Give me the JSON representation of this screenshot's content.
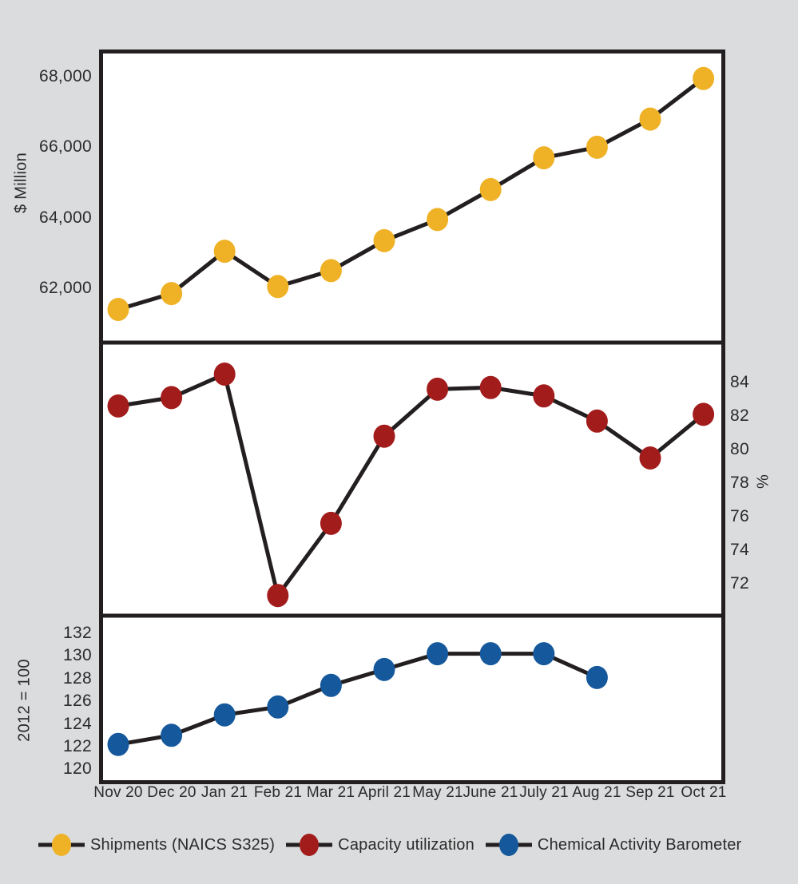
{
  "colors": {
    "background": "#DADCDD",
    "panel_background": "#FFFFFF",
    "line_stroke": "#231F20",
    "text": "#2B2B2B",
    "shipments": "#EFB226",
    "capacity": "#A31C1C",
    "barometer": "#15589B"
  },
  "chart_data": {
    "type": "line",
    "categories": [
      "Nov 20",
      "Dec 20",
      "Jan 21",
      "Feb 21",
      "Mar 21",
      "April 21",
      "May 21",
      "June 21",
      "July 21",
      "Aug 21",
      "Sep 21",
      "Oct 21"
    ],
    "panels": [
      {
        "name": "Shipments (NAICS S325)",
        "ylabel": "$ Million",
        "axis_side": "left",
        "color": "#EFB226",
        "ylim": [
          60450,
          68650
        ],
        "values": [
          61400,
          61850,
          63050,
          62050,
          62500,
          63350,
          63950,
          64800,
          65700,
          66000,
          66800,
          67950
        ],
        "yticks": [
          {
            "value": 68000,
            "label": "68,000"
          },
          {
            "value": 66000,
            "label": "66,000"
          },
          {
            "value": 64000,
            "label": "64,000"
          },
          {
            "value": 62000,
            "label": "62,000"
          }
        ]
      },
      {
        "name": "Capacity utilization",
        "ylabel": "%",
        "axis_side": "right",
        "color": "#A31C1C",
        "ylim": [
          70.1,
          86.4
        ],
        "values": [
          82.6,
          83.1,
          84.5,
          71.3,
          75.6,
          80.8,
          83.6,
          83.7,
          83.2,
          81.7,
          79.5,
          82.1
        ],
        "yticks": [
          {
            "value": 84,
            "label": "84"
          },
          {
            "value": 82,
            "label": "82"
          },
          {
            "value": 80,
            "label": "80"
          },
          {
            "value": 78,
            "label": "78"
          },
          {
            "value": 76,
            "label": "76"
          },
          {
            "value": 74,
            "label": "74"
          },
          {
            "value": 72,
            "label": "72"
          }
        ]
      },
      {
        "name": "Chemical Activity Barometer",
        "ylabel": "2012 = 100",
        "axis_side": "left",
        "color": "#15589B",
        "ylim": [
          119.0,
          133.5
        ],
        "values": [
          122.2,
          123.0,
          124.8,
          125.5,
          127.4,
          128.8,
          130.2,
          130.2,
          130.2,
          128.1,
          null,
          null
        ],
        "yticks": [
          {
            "value": 132,
            "label": "132"
          },
          {
            "value": 130,
            "label": "130"
          },
          {
            "value": 128,
            "label": "128"
          },
          {
            "value": 126,
            "label": "126"
          },
          {
            "value": 124,
            "label": "124"
          },
          {
            "value": 122,
            "label": "122"
          },
          {
            "value": 120,
            "label": "120"
          }
        ]
      }
    ]
  },
  "legend": {
    "items": [
      {
        "label": "Shipments (NAICS S325)",
        "color": "#EFB226"
      },
      {
        "label": "Capacity utilization",
        "color": "#A31C1C"
      },
      {
        "label": "Chemical Activity Barometer",
        "color": "#15589B"
      }
    ]
  }
}
